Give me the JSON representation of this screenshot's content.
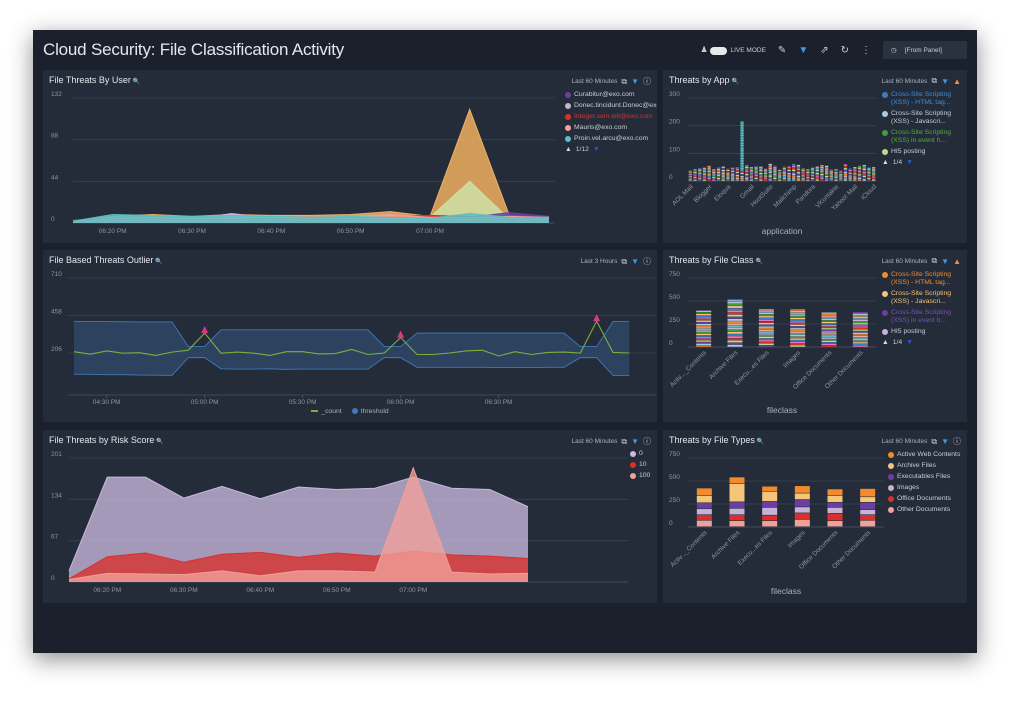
{
  "header": {
    "title": "Cloud Security: File Classification Activity",
    "live_mode_label": "LIVE MODE",
    "live_mode_on": false,
    "time_range": "[From Panel]"
  },
  "panels": {
    "user": {
      "title": "File Threats By User",
      "time_range": "Last 60 Minutes",
      "status_icon": "info-icon",
      "legend_page": "1/12"
    },
    "app": {
      "title": "Threats by App",
      "time_range": "Last 60 Minutes",
      "status_icon": "warning-icon",
      "legend_page": "1/4"
    },
    "outlier": {
      "title": "File Based Threats Outlier",
      "time_range": "Last 3 Hours",
      "status_icon": "info-icon"
    },
    "fileclass": {
      "title": "Threats by File Class",
      "time_range": "Last 60 Minutes",
      "status_icon": "warning-icon",
      "legend_page": "1/4"
    },
    "risk": {
      "title": "File Threats by Risk Score",
      "time_range": "Last 60 Minutes",
      "status_icon": "info-icon"
    },
    "filetypes": {
      "title": "Threats by File Types",
      "time_range": "Last 60 Minutes",
      "status_icon": "info-icon"
    }
  },
  "chart_data": [
    {
      "type": "area",
      "panel": "user",
      "ylim": [
        0,
        132
      ],
      "yticks": [
        0,
        44,
        88,
        132
      ],
      "x": [
        "06:15 PM",
        "06:20 PM",
        "06:25 PM",
        "06:30 PM",
        "06:35 PM",
        "06:40 PM",
        "06:45 PM",
        "06:50 PM",
        "06:55 PM",
        "07:00 PM",
        "07:05 PM",
        "07:10 PM",
        "07:15 PM"
      ],
      "xticks": [
        "06:20 PM",
        "06:30 PM",
        "06:40 PM",
        "06:50 PM",
        "07:00 PM"
      ],
      "series": [
        {
          "color": "#f0b060",
          "values": [
            2,
            7,
            9,
            7,
            9,
            8,
            8,
            9,
            12,
            7,
            120,
            8,
            6
          ]
        },
        {
          "color": "#cfe0a8",
          "values": [
            1,
            5,
            6,
            5,
            6,
            4,
            3,
            5,
            7,
            6,
            44,
            4,
            6
          ]
        },
        {
          "name": "Curabitur@exo.com",
          "color": "#6b3fa0",
          "values": [
            1,
            4,
            5,
            4,
            5,
            5,
            4,
            6,
            6,
            5,
            6,
            11,
            7
          ]
        },
        {
          "name": "Donec.tincidunt.Donec@exo.com",
          "color": "#c5b3d9",
          "values": [
            1,
            4,
            6,
            4,
            10,
            5,
            5,
            6,
            8,
            5,
            5,
            6,
            6
          ]
        },
        {
          "name": "Integer.sem.elit@exo.com",
          "color": "#d9302a",
          "text_color": "#d9302a",
          "values": [
            3,
            5,
            6,
            5,
            5,
            5,
            5,
            6,
            7,
            8,
            7,
            6,
            6
          ]
        },
        {
          "name": "Mauris@exo.com",
          "color": "#f2a09a",
          "values": [
            2,
            5,
            6,
            5,
            5,
            6,
            6,
            7,
            9,
            6,
            6,
            7,
            6
          ]
        },
        {
          "name": "Proin.vel.arcu@exo.com",
          "color": "#5bc0c8",
          "values": [
            2,
            9,
            8,
            7,
            8,
            7,
            6,
            7,
            6,
            5,
            10,
            6,
            6
          ]
        }
      ]
    },
    {
      "type": "bar",
      "stacked": true,
      "panel": "app",
      "ylim": [
        0,
        300
      ],
      "yticks": [
        0,
        100,
        200,
        300
      ],
      "xlabel": "application",
      "tick_labels": [
        {
          "label": "AOL Mail",
          "index": 0
        },
        {
          "label": "Blogger",
          "index": 4
        },
        {
          "label": "Eloqua",
          "index": 8
        },
        {
          "label": "Gmail",
          "index": 13
        },
        {
          "label": "HootSuite",
          "index": 17
        },
        {
          "label": "Mailchimp",
          "index": 22
        },
        {
          "label": "Pandora",
          "index": 26
        },
        {
          "label": "VKontakte",
          "index": 31
        },
        {
          "label": "Yahoo! Mail",
          "index": 35
        },
        {
          "label": "iCloud",
          "index": 39
        }
      ],
      "totals": [
        38,
        42,
        45,
        48,
        55,
        42,
        50,
        52,
        45,
        48,
        50,
        215,
        58,
        50,
        52,
        52,
        44,
        62,
        56,
        40,
        52,
        52,
        62,
        58,
        46,
        42,
        48,
        52,
        58,
        55,
        42,
        42,
        38,
        60,
        45,
        50,
        55,
        58,
        48,
        50
      ],
      "series": [
        {
          "name": "Cross-Site Scripting (XSS) - HTML tag...",
          "color": "#3a7fc1",
          "text_color": "#3a8fe0"
        },
        {
          "name": "Cross-Site Scripting (XSS) - Javascri...",
          "color": "#a9cce3"
        },
        {
          "name": "Cross-Site Scripting (XSS) in event h...",
          "color": "#4a9a3a",
          "text_color": "#4fae3a"
        },
        {
          "name": "HI5 posting",
          "color": "#b8dc8a"
        }
      ]
    },
    {
      "type": "line",
      "panel": "outlier",
      "ylim": [
        -80,
        710
      ],
      "yticks": [
        206,
        458,
        710
      ],
      "x_start": "04:20 PM",
      "x_step_minutes": 5,
      "xticks": [
        "04:30 PM",
        "05:00 PM",
        "05:30 PM",
        "06:00 PM",
        "06:30 PM"
      ],
      "series": [
        {
          "name": "_count",
          "color": "#7fae3a",
          "values": [
            215,
            198,
            220,
            205,
            208,
            190,
            212,
            225,
            340,
            205,
            212,
            205,
            190,
            215,
            215,
            200,
            202,
            230,
            196,
            206,
            310,
            196,
            196,
            206,
            220,
            225,
            186,
            215,
            196,
            210,
            212,
            206,
            420,
            210,
            206
          ]
        },
        {
          "name": "threshold",
          "color": "#3e7ab8",
          "upper": [
            417,
            417,
            417,
            416,
            415,
            415,
            415,
            249,
            249,
            362,
            362,
            362,
            362,
            362,
            362,
            362,
            362,
            362,
            362,
            249,
            249,
            340,
            340,
            340,
            340,
            340,
            340,
            340,
            340,
            340,
            340,
            249,
            249,
            417,
            417
          ],
          "lower": [
            63,
            63,
            60,
            60,
            58,
            57,
            55,
            175,
            175,
            100,
            98,
            98,
            100,
            96,
            98,
            98,
            98,
            98,
            98,
            175,
            175,
            110,
            110,
            110,
            110,
            110,
            108,
            108,
            108,
            110,
            110,
            175,
            175,
            55,
            55
          ]
        }
      ],
      "outliers": [
        "05:00 PM",
        "06:00 PM",
        "07:00 PM"
      ]
    },
    {
      "type": "bar",
      "stacked": true,
      "panel": "fileclass",
      "ylim": [
        0,
        750
      ],
      "yticks": [
        0,
        250,
        500,
        750
      ],
      "xlabel": "fileclass",
      "categories": [
        "Activ..._Contents",
        "Archive Files",
        "Execu...es Files",
        "Images",
        "Office Documents",
        "Other Documents"
      ],
      "totals": [
        395,
        515,
        410,
        410,
        375,
        380
      ],
      "series": [
        {
          "name": "Cross-Site Scripting (XSS) - HTML tag...",
          "color": "#f28b2f",
          "text_color": "#f28b2f"
        },
        {
          "name": "Cross-Site Scripting (XSS) - Javascri...",
          "color": "#f5c57a",
          "text_color": "#f5c57a"
        },
        {
          "name": "Cross-Site Scripting (XSS) in event h...",
          "color": "#6b3fa0",
          "text_color": "#7b4fc0"
        },
        {
          "name": "HI5 posting",
          "color": "#c5b3d9"
        }
      ]
    },
    {
      "type": "area",
      "panel": "risk",
      "ylim": [
        0,
        201
      ],
      "yticks": [
        0,
        67,
        134,
        201
      ],
      "x": [
        "06:15 PM",
        "06:20 PM",
        "06:25 PM",
        "06:30 PM",
        "06:35 PM",
        "06:40 PM",
        "06:45 PM",
        "06:50 PM",
        "06:55 PM",
        "07:00 PM",
        "07:05 PM",
        "07:10 PM",
        "07:15 PM"
      ],
      "xticks": [
        "06:20 PM",
        "06:30 PM",
        "06:40 PM",
        "06:50 PM",
        "07:00 PM"
      ],
      "series": [
        {
          "name": "0",
          "color": "#c8b9de",
          "values": [
            18,
            170,
            170,
            136,
            155,
            135,
            154,
            150,
            152,
            170,
            152,
            150,
            122
          ]
        },
        {
          "name": "10",
          "color": "#d9302a",
          "values": [
            5,
            41,
            47,
            32,
            45,
            48,
            40,
            47,
            42,
            50,
            44,
            42,
            38
          ]
        },
        {
          "name": "100",
          "color": "#f2a09a",
          "values": [
            4,
            14,
            13,
            12,
            18,
            10,
            18,
            18,
            16,
            185,
            16,
            13,
            14
          ]
        }
      ]
    },
    {
      "type": "bar",
      "stacked": true,
      "panel": "filetypes",
      "ylim": [
        0,
        750
      ],
      "yticks": [
        0,
        250,
        500,
        750
      ],
      "xlabel": "fileclass",
      "categories": [
        "Activ..._Contents",
        "Archive Files",
        "Execu...es Files",
        "Images",
        "Office Documents",
        "Other Documents"
      ],
      "series": [
        {
          "name": "Other Documents",
          "color": "#f2a09a",
          "values": [
            70,
            65,
            65,
            80,
            65,
            70
          ]
        },
        {
          "name": "Office Documents",
          "color": "#d9302a",
          "values": [
            60,
            65,
            60,
            70,
            80,
            60
          ]
        },
        {
          "name": "Images",
          "color": "#c5b3d9",
          "values": [
            65,
            70,
            85,
            65,
            65,
            55
          ]
        },
        {
          "name": "Executables Files",
          "color": "#6b3fa0",
          "values": [
            65,
            70,
            65,
            80,
            55,
            80
          ]
        },
        {
          "name": "Archive Files",
          "color": "#f5c57a",
          "values": [
            80,
            200,
            110,
            70,
            75,
            60
          ]
        },
        {
          "name": "Active Web Contents",
          "color": "#f28b2f",
          "values": [
            80,
            70,
            55,
            80,
            70,
            90
          ]
        }
      ],
      "legend_order": [
        "Active Web Contents",
        "Archive Files",
        "Executables Files",
        "Images",
        "Office Documents",
        "Other Documents"
      ]
    }
  ]
}
